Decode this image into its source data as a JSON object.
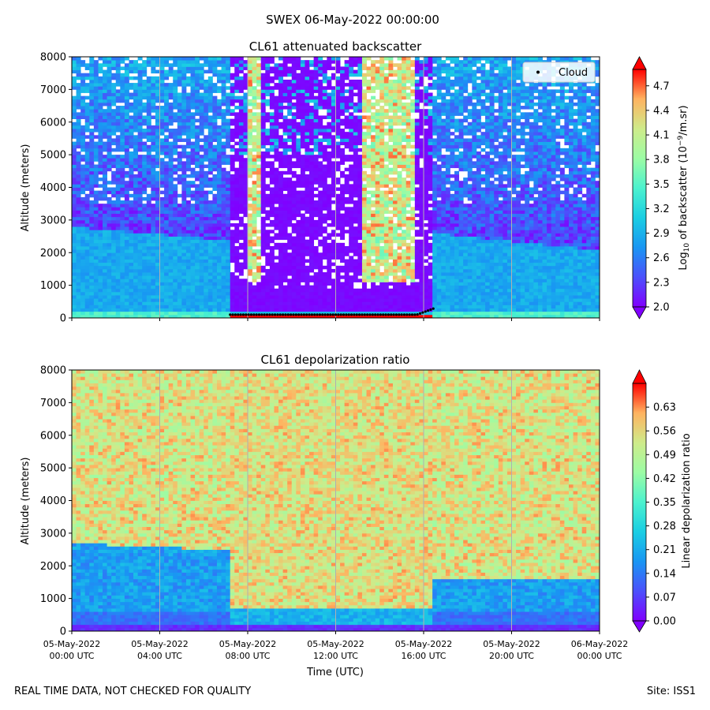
{
  "suptitle": "SWEX 06-May-2022 00:00:00",
  "footer_left": "REAL TIME DATA, NOT CHECKED FOR QUALITY",
  "footer_right": "Site: ISS1",
  "chart_data": [
    {
      "type": "heatmap",
      "title": "CL61 attenuated backscatter",
      "xlabel": "",
      "ylabel": "Altitude (meters)",
      "ylim": [
        0,
        8000
      ],
      "yticks": [
        0,
        1000,
        2000,
        3000,
        4000,
        5000,
        6000,
        7000,
        8000
      ],
      "xlim_hours": [
        0,
        24
      ],
      "colorbar": {
        "label_prefix": "Log",
        "label_sub": "10",
        "label_middle": " of backscatter (10",
        "label_sup": "−9",
        "label_suffix": "/m.sr)",
        "range": [
          2.0,
          4.9
        ],
        "ticks": [
          "2.0",
          "2.3",
          "2.6",
          "2.9",
          "3.2",
          "3.5",
          "3.8",
          "4.1",
          "4.4",
          "4.7"
        ],
        "colormap": "rainbow",
        "extend": "both"
      },
      "legend": {
        "label": "Cloud",
        "marker_color": "#000000",
        "location": "upper right"
      },
      "cloud_base": {
        "periods_hours": [
          [
            7.2,
            16.5
          ]
        ],
        "typical_altitude_m": 100,
        "rising_end_altitude_m": 300
      }
    },
    {
      "type": "heatmap",
      "title": "CL61 depolarization ratio",
      "xlabel": "Time (UTC)",
      "ylabel": "Altitude (meters)",
      "ylim": [
        0,
        8000
      ],
      "yticks": [
        0,
        1000,
        2000,
        3000,
        4000,
        5000,
        6000,
        7000,
        8000
      ],
      "xlim_hours": [
        0,
        24
      ],
      "colorbar": {
        "label": "Linear depolarization ratio",
        "range": [
          0.0,
          0.7
        ],
        "ticks": [
          "0.00",
          "0.07",
          "0.14",
          "0.21",
          "0.28",
          "0.35",
          "0.42",
          "0.49",
          "0.56",
          "0.63"
        ],
        "colormap": "rainbow",
        "extend": "both"
      }
    }
  ],
  "x_ticks": [
    {
      "hour": 0,
      "date": "05-May-2022",
      "time": "00:00 UTC"
    },
    {
      "hour": 4,
      "date": "05-May-2022",
      "time": "04:00 UTC"
    },
    {
      "hour": 8,
      "date": "05-May-2022",
      "time": "08:00 UTC"
    },
    {
      "hour": 12,
      "date": "05-May-2022",
      "time": "12:00 UTC"
    },
    {
      "hour": 16,
      "date": "05-May-2022",
      "time": "16:00 UTC"
    },
    {
      "hour": 20,
      "date": "05-May-2022",
      "time": "20:00 UTC"
    },
    {
      "hour": 24,
      "date": "06-May-2022",
      "time": "00:00 UTC"
    }
  ]
}
